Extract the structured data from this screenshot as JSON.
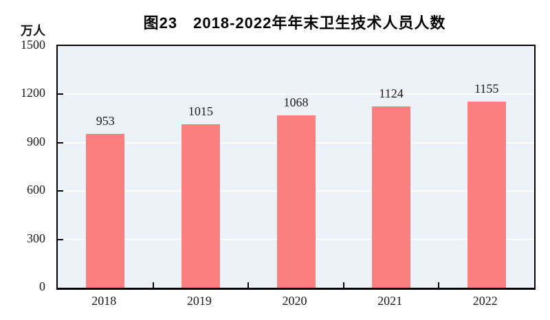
{
  "chart_data": {
    "type": "bar",
    "title": "图23　2018-2022年年末卫生技术人员人数",
    "unit_label": "万人",
    "categories": [
      "2018",
      "2019",
      "2020",
      "2021",
      "2022"
    ],
    "values": [
      953,
      1015,
      1068,
      1124,
      1155
    ],
    "xlabel": "",
    "ylabel": "万人",
    "ylim": [
      0,
      1500
    ],
    "yticks": [
      0,
      300,
      600,
      900,
      1200,
      1500
    ],
    "grid": "horizontal",
    "legend_position": "none",
    "value_labels_shown": true,
    "colors": {
      "bar": "#fa8080",
      "plot_background": "#ecf2f7",
      "gridline": "#ffffff",
      "axis": "#000000",
      "text": "#1a1a1a"
    }
  }
}
